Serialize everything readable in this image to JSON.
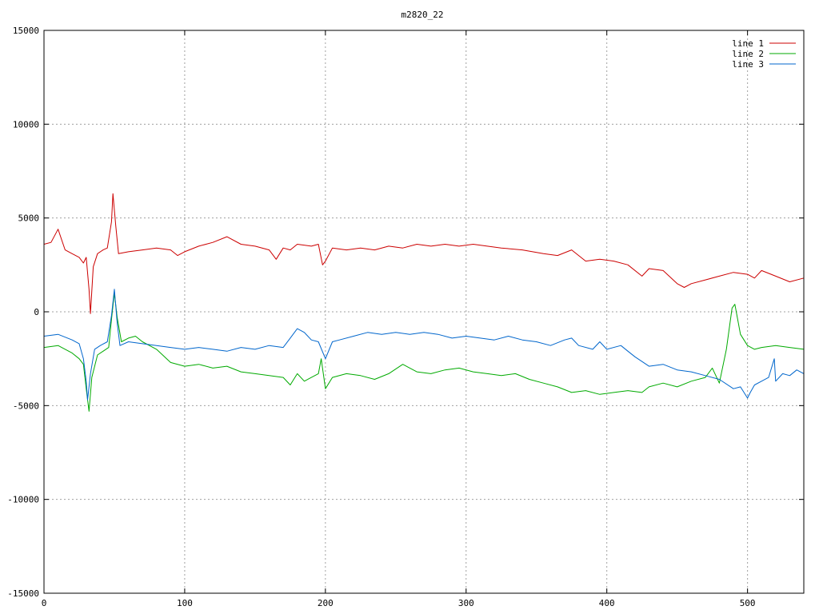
{
  "chart_data": {
    "type": "line",
    "title": "m2820_22",
    "xlabel": "",
    "ylabel": "",
    "xlim": [
      0,
      540
    ],
    "ylim": [
      -15000,
      15000
    ],
    "x_ticks": [
      0,
      100,
      200,
      300,
      400,
      500
    ],
    "y_ticks": [
      -15000,
      -10000,
      -5000,
      0,
      5000,
      10000,
      15000
    ],
    "grid": true,
    "legend_position": "top-right",
    "series": [
      {
        "name": "line 1",
        "color": "#cc0000",
        "points": [
          [
            0,
            3600
          ],
          [
            5,
            3700
          ],
          [
            10,
            4400
          ],
          [
            15,
            3300
          ],
          [
            20,
            3100
          ],
          [
            25,
            2900
          ],
          [
            28,
            2600
          ],
          [
            30,
            2900
          ],
          [
            32,
            1200
          ],
          [
            33,
            -100
          ],
          [
            35,
            2400
          ],
          [
            38,
            3100
          ],
          [
            42,
            3300
          ],
          [
            45,
            3400
          ],
          [
            48,
            4800
          ],
          [
            49,
            6300
          ],
          [
            51,
            4600
          ],
          [
            53,
            3100
          ],
          [
            60,
            3200
          ],
          [
            70,
            3300
          ],
          [
            80,
            3400
          ],
          [
            90,
            3300
          ],
          [
            95,
            3000
          ],
          [
            100,
            3200
          ],
          [
            110,
            3500
          ],
          [
            120,
            3700
          ],
          [
            130,
            4000
          ],
          [
            140,
            3600
          ],
          [
            150,
            3500
          ],
          [
            160,
            3300
          ],
          [
            165,
            2800
          ],
          [
            170,
            3400
          ],
          [
            175,
            3300
          ],
          [
            180,
            3600
          ],
          [
            190,
            3500
          ],
          [
            195,
            3600
          ],
          [
            198,
            2500
          ],
          [
            200,
            2700
          ],
          [
            205,
            3400
          ],
          [
            215,
            3300
          ],
          [
            225,
            3400
          ],
          [
            235,
            3300
          ],
          [
            245,
            3500
          ],
          [
            255,
            3400
          ],
          [
            265,
            3600
          ],
          [
            275,
            3500
          ],
          [
            285,
            3600
          ],
          [
            295,
            3500
          ],
          [
            305,
            3600
          ],
          [
            315,
            3500
          ],
          [
            325,
            3400
          ],
          [
            340,
            3300
          ],
          [
            355,
            3100
          ],
          [
            365,
            3000
          ],
          [
            375,
            3300
          ],
          [
            385,
            2700
          ],
          [
            395,
            2800
          ],
          [
            405,
            2700
          ],
          [
            415,
            2500
          ],
          [
            425,
            1900
          ],
          [
            430,
            2300
          ],
          [
            440,
            2200
          ],
          [
            450,
            1500
          ],
          [
            455,
            1300
          ],
          [
            460,
            1500
          ],
          [
            470,
            1700
          ],
          [
            480,
            1900
          ],
          [
            490,
            2100
          ],
          [
            500,
            2000
          ],
          [
            505,
            1800
          ],
          [
            510,
            2200
          ],
          [
            520,
            1900
          ],
          [
            530,
            1600
          ],
          [
            540,
            1800
          ]
        ]
      },
      {
        "name": "line 2",
        "color": "#00aa00",
        "points": [
          [
            0,
            -1900
          ],
          [
            10,
            -1800
          ],
          [
            20,
            -2200
          ],
          [
            25,
            -2500
          ],
          [
            28,
            -2800
          ],
          [
            30,
            -4100
          ],
          [
            32,
            -5300
          ],
          [
            34,
            -3500
          ],
          [
            38,
            -2300
          ],
          [
            42,
            -2100
          ],
          [
            46,
            -1900
          ],
          [
            48,
            -400
          ],
          [
            50,
            1000
          ],
          [
            52,
            -300
          ],
          [
            55,
            -1600
          ],
          [
            60,
            -1400
          ],
          [
            65,
            -1300
          ],
          [
            70,
            -1600
          ],
          [
            80,
            -2000
          ],
          [
            90,
            -2700
          ],
          [
            100,
            -2900
          ],
          [
            110,
            -2800
          ],
          [
            120,
            -3000
          ],
          [
            130,
            -2900
          ],
          [
            140,
            -3200
          ],
          [
            150,
            -3300
          ],
          [
            160,
            -3400
          ],
          [
            170,
            -3500
          ],
          [
            175,
            -3900
          ],
          [
            180,
            -3300
          ],
          [
            185,
            -3700
          ],
          [
            190,
            -3500
          ],
          [
            195,
            -3300
          ],
          [
            197,
            -2500
          ],
          [
            200,
            -4100
          ],
          [
            205,
            -3500
          ],
          [
            215,
            -3300
          ],
          [
            225,
            -3400
          ],
          [
            235,
            -3600
          ],
          [
            245,
            -3300
          ],
          [
            255,
            -2800
          ],
          [
            265,
            -3200
          ],
          [
            275,
            -3300
          ],
          [
            285,
            -3100
          ],
          [
            295,
            -3000
          ],
          [
            305,
            -3200
          ],
          [
            315,
            -3300
          ],
          [
            325,
            -3400
          ],
          [
            335,
            -3300
          ],
          [
            345,
            -3600
          ],
          [
            355,
            -3800
          ],
          [
            365,
            -4000
          ],
          [
            375,
            -4300
          ],
          [
            385,
            -4200
          ],
          [
            395,
            -4400
          ],
          [
            405,
            -4300
          ],
          [
            415,
            -4200
          ],
          [
            425,
            -4300
          ],
          [
            430,
            -4000
          ],
          [
            440,
            -3800
          ],
          [
            450,
            -4000
          ],
          [
            460,
            -3700
          ],
          [
            470,
            -3500
          ],
          [
            475,
            -3000
          ],
          [
            480,
            -3800
          ],
          [
            485,
            -2000
          ],
          [
            489,
            200
          ],
          [
            491,
            400
          ],
          [
            495,
            -1200
          ],
          [
            500,
            -1800
          ],
          [
            505,
            -2000
          ],
          [
            510,
            -1900
          ],
          [
            520,
            -1800
          ],
          [
            530,
            -1900
          ],
          [
            540,
            -2000
          ]
        ]
      },
      {
        "name": "line 3",
        "color": "#0066cc",
        "points": [
          [
            0,
            -1300
          ],
          [
            10,
            -1200
          ],
          [
            20,
            -1500
          ],
          [
            25,
            -1700
          ],
          [
            28,
            -2500
          ],
          [
            30,
            -3700
          ],
          [
            31,
            -4700
          ],
          [
            33,
            -3300
          ],
          [
            36,
            -2000
          ],
          [
            40,
            -1800
          ],
          [
            45,
            -1600
          ],
          [
            48,
            -200
          ],
          [
            50,
            1200
          ],
          [
            52,
            -600
          ],
          [
            54,
            -1800
          ],
          [
            60,
            -1600
          ],
          [
            70,
            -1700
          ],
          [
            80,
            -1800
          ],
          [
            90,
            -1900
          ],
          [
            100,
            -2000
          ],
          [
            110,
            -1900
          ],
          [
            120,
            -2000
          ],
          [
            130,
            -2100
          ],
          [
            140,
            -1900
          ],
          [
            150,
            -2000
          ],
          [
            160,
            -1800
          ],
          [
            170,
            -1900
          ],
          [
            175,
            -1400
          ],
          [
            180,
            -900
          ],
          [
            185,
            -1100
          ],
          [
            190,
            -1500
          ],
          [
            195,
            -1600
          ],
          [
            200,
            -2500
          ],
          [
            205,
            -1600
          ],
          [
            210,
            -1500
          ],
          [
            220,
            -1300
          ],
          [
            230,
            -1100
          ],
          [
            240,
            -1200
          ],
          [
            250,
            -1100
          ],
          [
            260,
            -1200
          ],
          [
            270,
            -1100
          ],
          [
            280,
            -1200
          ],
          [
            290,
            -1400
          ],
          [
            300,
            -1300
          ],
          [
            310,
            -1400
          ],
          [
            320,
            -1500
          ],
          [
            330,
            -1300
          ],
          [
            340,
            -1500
          ],
          [
            350,
            -1600
          ],
          [
            360,
            -1800
          ],
          [
            370,
            -1500
          ],
          [
            375,
            -1400
          ],
          [
            380,
            -1800
          ],
          [
            390,
            -2000
          ],
          [
            395,
            -1600
          ],
          [
            400,
            -2000
          ],
          [
            410,
            -1800
          ],
          [
            415,
            -2100
          ],
          [
            420,
            -2400
          ],
          [
            430,
            -2900
          ],
          [
            440,
            -2800
          ],
          [
            450,
            -3100
          ],
          [
            460,
            -3200
          ],
          [
            470,
            -3400
          ],
          [
            480,
            -3600
          ],
          [
            490,
            -4100
          ],
          [
            495,
            -4000
          ],
          [
            500,
            -4600
          ],
          [
            502,
            -4300
          ],
          [
            505,
            -3900
          ],
          [
            510,
            -3700
          ],
          [
            515,
            -3500
          ],
          [
            519,
            -2500
          ],
          [
            520,
            -3700
          ],
          [
            525,
            -3300
          ],
          [
            530,
            -3400
          ],
          [
            535,
            -3100
          ],
          [
            540,
            -3300
          ]
        ]
      }
    ]
  }
}
